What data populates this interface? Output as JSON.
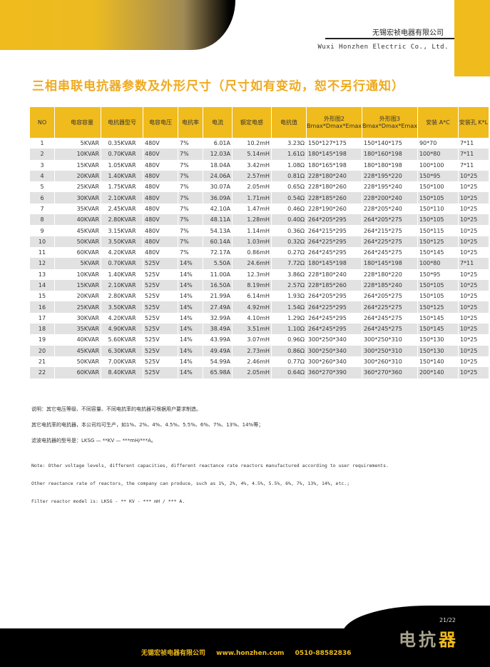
{
  "header": {
    "company_cn": "无锡宏祯电器有限公司",
    "company_en": "Wuxi Honzhen Electric Co., Ltd."
  },
  "title": "三相串联电抗器参数及外形尺寸（尺寸如有变动，恕不另行通知）",
  "table": {
    "headers": [
      "NO",
      "电容容量",
      "电抗器型号",
      "电容电压",
      "电抗率",
      "电流",
      "额定电感",
      "电抗值",
      "外形图2 Bmax*Dmax*Emax",
      "外形图3 Bmax*Dmax*Emax",
      "安装 A*C",
      "安装孔 K*L"
    ],
    "rows": [
      [
        "1",
        "5KVAR",
        "0.35KVAR",
        "480V",
        "7%",
        "6.01A",
        "10.2mH",
        "3.23Ω",
        "150*127*175",
        "150*140*175",
        "90*70",
        "7*11"
      ],
      [
        "2",
        "10KVAR",
        "0.70KVAR",
        "480V",
        "7%",
        "12.03A",
        "5.14mH",
        "1.61Ω",
        "180*145*198",
        "180*160*198",
        "100*80",
        "7*11"
      ],
      [
        "3",
        "15KVAR",
        "1.05KVAR",
        "480V",
        "7%",
        "18.04A",
        "3.42mH",
        "1.08Ω",
        "180*165*198",
        "180*180*198",
        "100*100",
        "7*11"
      ],
      [
        "4",
        "20KVAR",
        "1.40KVAR",
        "480V",
        "7%",
        "24.06A",
        "2.57mH",
        "0.81Ω",
        "228*180*240",
        "228*195*220",
        "150*95",
        "10*25"
      ],
      [
        "5",
        "25KVAR",
        "1.75KVAR",
        "480V",
        "7%",
        "30.07A",
        "2.05mH",
        "0.65Ω",
        "228*180*260",
        "228*195*240",
        "150*100",
        "10*25"
      ],
      [
        "6",
        "30KVAR",
        "2.10KVAR",
        "480V",
        "7%",
        "36.09A",
        "1.71mH",
        "0.54Ω",
        "228*185*260",
        "228*200*240",
        "150*105",
        "10*25"
      ],
      [
        "7",
        "35KVAR",
        "2.45KVAR",
        "480V",
        "7%",
        "42.10A",
        "1.47mH",
        "0.46Ω",
        "228*190*260",
        "228*205*240",
        "150*110",
        "10*25"
      ],
      [
        "8",
        "40KVAR",
        "2.80KVAR",
        "480V",
        "7%",
        "48.11A",
        "1.28mH",
        "0.40Ω",
        "264*205*295",
        "264*205*275",
        "150*105",
        "10*25"
      ],
      [
        "9",
        "45KVAR",
        "3.15KVAR",
        "480V",
        "7%",
        "54.13A",
        "1.14mH",
        "0.36Ω",
        "264*215*295",
        "264*215*275",
        "150*115",
        "10*25"
      ],
      [
        "10",
        "50KVAR",
        "3.50KVAR",
        "480V",
        "7%",
        "60.14A",
        "1.03mH",
        "0.32Ω",
        "264*225*295",
        "264*225*275",
        "150*125",
        "10*25"
      ],
      [
        "11",
        "60KVAR",
        "4.20KVAR",
        "480V",
        "7%",
        "72.17A",
        "0.86mH",
        "0.27Ω",
        "264*245*295",
        "264*245*275",
        "150*145",
        "10*25"
      ],
      [
        "12",
        "5KVAR",
        "0.70KVAR",
        "525V",
        "14%",
        "5.50A",
        "24.6mH",
        "7.72Ω",
        "180*145*198",
        "180*145*198",
        "100*80",
        "7*11"
      ],
      [
        "13",
        "10KVAR",
        "1.40KVAR",
        "525V",
        "14%",
        "11.00A",
        "12.3mH",
        "3.86Ω",
        "228*180*240",
        "228*180*220",
        "150*95",
        "10*25"
      ],
      [
        "14",
        "15KVAR",
        "2.10KVAR",
        "525V",
        "14%",
        "16.50A",
        "8.19mH",
        "2.57Ω",
        "228*185*260",
        "228*185*240",
        "150*105",
        "10*25"
      ],
      [
        "15",
        "20KVAR",
        "2.80KVAR",
        "525V",
        "14%",
        "21.99A",
        "6.14mH",
        "1.93Ω",
        "264*205*295",
        "264*205*275",
        "150*105",
        "10*25"
      ],
      [
        "16",
        "25KVAR",
        "3.50KVAR",
        "525V",
        "14%",
        "27.49A",
        "4.92mH",
        "1.54Ω",
        "264*225*295",
        "264*225*275",
        "150*125",
        "10*25"
      ],
      [
        "17",
        "30KVAR",
        "4.20KVAR",
        "525V",
        "14%",
        "32.99A",
        "4.10mH",
        "1.29Ω",
        "264*245*295",
        "264*245*275",
        "150*145",
        "10*25"
      ],
      [
        "18",
        "35KVAR",
        "4.90KVAR",
        "525V",
        "14%",
        "38.49A",
        "3.51mH",
        "1.10Ω",
        "264*245*295",
        "264*245*275",
        "150*145",
        "10*25"
      ],
      [
        "19",
        "40KVAR",
        "5.60KVAR",
        "525V",
        "14%",
        "43.99A",
        "3.07mH",
        "0.96Ω",
        "300*250*340",
        "300*250*310",
        "150*130",
        "10*25"
      ],
      [
        "20",
        "45KVAR",
        "6.30KVAR",
        "525V",
        "14%",
        "49.49A",
        "2.73mH",
        "0.86Ω",
        "300*250*340",
        "300*250*310",
        "150*130",
        "10*25"
      ],
      [
        "21",
        "50KVAR",
        "7.00KVAR",
        "525V",
        "14%",
        "54.99A",
        "2.46mH",
        "0.77Ω",
        "300*260*340",
        "300*260*310",
        "150*140",
        "10*25"
      ],
      [
        "22",
        "60KVAR",
        "8.40KVAR",
        "525V",
        "14%",
        "65.98A",
        "2.05mH",
        "0.64Ω",
        "360*270*390",
        "360*270*360",
        "200*140",
        "10*25"
      ]
    ]
  },
  "notes_cn": [
    "说明：其它电压等级、不同容量、不同电抗率的电抗器可根据用户要求制造。",
    "其它电抗率的电抗器，本公司均可生产，如1%、2%、4%、4.5%、5.5%、6%、7%、13%、14%等；",
    "滤波电抗器的型号是：LKSG — **KV — ***mH/***A。"
  ],
  "notes_en": [
    "Note: Other voltage levels, different capacities, different reactance rate reactors manufactured according to user requirements.",
    "Other reactance rate of reactors, the company can produce, such as 1%, 2%, 4%, 4.5%, 5.5%, 6%, 7%, 13%, 14%, etc.;",
    "Filter reactor model is: LKSG - ** KV - *** mH / *** A."
  ],
  "footer": {
    "page": "21/22",
    "brand_a": "电抗",
    "brand_b": "器",
    "company": "无锡宏祯电器有限公司",
    "website": "www.honzhen.com",
    "phone": "0510-88582836"
  },
  "colors": {
    "accent": "#f0bb1c",
    "title": "#eeaa20",
    "footer": "#000000"
  }
}
